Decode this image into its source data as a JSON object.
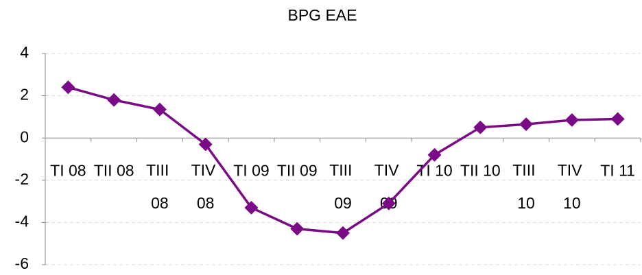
{
  "chart_data": {
    "type": "line",
    "title": "BPG EAE",
    "categories": [
      "TI 08",
      "TII 08",
      "TIII 08",
      "TIV 08",
      "TI 09",
      "TII 09",
      "TIII 09",
      "TIV 09",
      "TI 10",
      "TII 10",
      "TIII 10",
      "TIV 10",
      "TI 11"
    ],
    "series": [
      {
        "name": "BPG EAE",
        "color": "#7a0a85",
        "values": [
          2.4,
          1.8,
          1.35,
          -0.3,
          -3.3,
          -4.3,
          -4.5,
          -3.1,
          -0.8,
          0.5,
          0.65,
          0.85,
          0.9
        ]
      }
    ],
    "ylim": [
      -6,
      4
    ],
    "yticks": [
      -6,
      -4,
      -2,
      0,
      2,
      4
    ],
    "grid": true
  }
}
